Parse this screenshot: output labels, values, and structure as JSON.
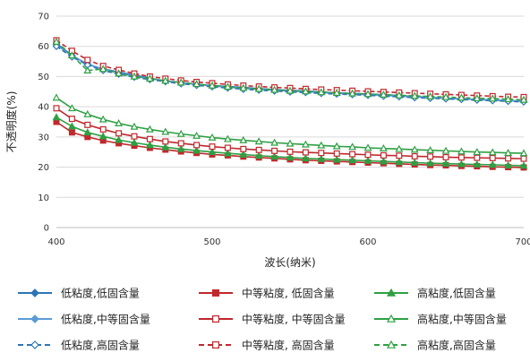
{
  "chart_data": {
    "type": "line",
    "xlabel": "波长(纳米)",
    "ylabel": "不透明度(%)",
    "xlim": [
      400,
      700
    ],
    "ylim": [
      0,
      70
    ],
    "xticks": [
      400,
      500,
      600,
      700
    ],
    "yticks": [
      0,
      10,
      20,
      30,
      40,
      50,
      60,
      70
    ],
    "grid": "horizontal",
    "legend_position": "bottom",
    "x": [
      400,
      410,
      420,
      430,
      440,
      450,
      460,
      470,
      480,
      490,
      500,
      510,
      520,
      530,
      540,
      550,
      560,
      570,
      580,
      590,
      600,
      610,
      620,
      630,
      640,
      650,
      660,
      670,
      680,
      690,
      700
    ],
    "series": [
      {
        "name": "低粘度,低固含量",
        "color": "#2E75B6",
        "dash": "solid",
        "marker": "diamond",
        "fill": "filled",
        "values": [
          61.0,
          57.0,
          54.0,
          52.5,
          51.5,
          50.5,
          49.5,
          48.5,
          48.0,
          47.5,
          47.0,
          46.7,
          46.4,
          46.0,
          45.7,
          45.4,
          45.2,
          44.9,
          44.6,
          44.4,
          44.2,
          44.0,
          43.7,
          43.4,
          43.1,
          42.8,
          42.6,
          42.4,
          42.2,
          42.0,
          41.8
        ]
      },
      {
        "name": "中等粘度, 低固含量",
        "color": "#C0282D",
        "dash": "solid",
        "marker": "square",
        "fill": "filled",
        "values": [
          35.0,
          31.5,
          30.0,
          28.8,
          27.9,
          27.1,
          26.4,
          25.8,
          25.2,
          24.7,
          24.2,
          23.9,
          23.5,
          23.2,
          22.9,
          22.6,
          22.3,
          22.1,
          21.9,
          21.7,
          21.5,
          21.3,
          21.1,
          20.9,
          20.7,
          20.6,
          20.4,
          20.3,
          20.1,
          20.0,
          19.9
        ]
      },
      {
        "name": "高粘度,低固含量",
        "color": "#2EA043",
        "dash": "solid",
        "marker": "triangle",
        "fill": "filled",
        "values": [
          36.5,
          33.5,
          31.5,
          30.2,
          29.0,
          28.1,
          27.3,
          26.6,
          26.0,
          25.5,
          25.0,
          24.6,
          24.2,
          23.8,
          23.5,
          23.2,
          22.9,
          22.7,
          22.5,
          22.3,
          22.1,
          21.9,
          21.7,
          21.5,
          21.3,
          21.2,
          21.0,
          20.9,
          20.8,
          20.6,
          20.5
        ]
      },
      {
        "name": "低粘度,中等固含量",
        "color": "#5B9BD5",
        "dash": "solid",
        "marker": "diamond",
        "fill": "filled",
        "values": [
          60.5,
          56.8,
          54.2,
          52.4,
          51.2,
          50.2,
          49.3,
          48.6,
          48.0,
          47.4,
          46.9,
          46.5,
          46.1,
          45.8,
          45.5,
          45.2,
          45.0,
          44.7,
          44.5,
          44.2,
          44.0,
          43.8,
          43.5,
          43.3,
          43.0,
          42.8,
          42.6,
          42.4,
          42.2,
          42.0,
          41.8
        ]
      },
      {
        "name": "中等粘度, 中等固含量",
        "color": "#C0282D",
        "dash": "solid",
        "marker": "square",
        "fill": "hollow",
        "values": [
          39.5,
          36.0,
          34.0,
          32.5,
          31.2,
          30.2,
          29.3,
          28.5,
          27.9,
          27.3,
          26.8,
          26.4,
          26.0,
          25.7,
          25.4,
          25.1,
          24.9,
          24.7,
          24.5,
          24.3,
          24.1,
          23.9,
          23.8,
          23.6,
          23.5,
          23.3,
          23.2,
          23.1,
          23.0,
          22.9,
          22.8
        ]
      },
      {
        "name": "高粘度,中等固含量",
        "color": "#2EA043",
        "dash": "solid",
        "marker": "triangle",
        "fill": "hollow",
        "values": [
          43.0,
          39.5,
          37.5,
          35.8,
          34.5,
          33.4,
          32.5,
          31.7,
          31.0,
          30.4,
          29.8,
          29.3,
          28.9,
          28.5,
          28.1,
          27.8,
          27.5,
          27.2,
          26.9,
          26.7,
          26.4,
          26.2,
          26.0,
          25.8,
          25.6,
          25.4,
          25.2,
          25.0,
          24.9,
          24.7,
          24.6
        ]
      },
      {
        "name": "低粘度,高固含量",
        "color": "#2E75B6",
        "dash": "dashed",
        "marker": "diamond",
        "fill": "hollow",
        "values": [
          60.0,
          56.5,
          53.8,
          52.0,
          50.8,
          49.8,
          49.0,
          48.3,
          47.6,
          47.1,
          46.6,
          46.2,
          45.8,
          45.5,
          45.2,
          44.9,
          44.7,
          44.4,
          44.2,
          44.0,
          43.8,
          43.5,
          43.3,
          43.0,
          42.8,
          42.6,
          42.4,
          42.2,
          42.0,
          41.8,
          41.6
        ]
      },
      {
        "name": "中等粘度, 高固含量",
        "color": "#C0282D",
        "dash": "dashed",
        "marker": "square",
        "fill": "hollow",
        "values": [
          62.0,
          58.5,
          55.5,
          53.5,
          52.2,
          51.0,
          50.0,
          49.3,
          48.7,
          48.2,
          47.8,
          47.4,
          47.0,
          46.7,
          46.4,
          46.2,
          45.9,
          45.7,
          45.5,
          45.3,
          45.1,
          44.9,
          44.7,
          44.5,
          44.3,
          44.1,
          43.9,
          43.7,
          43.5,
          43.3,
          43.2
        ]
      },
      {
        "name": "高粘度,高固含量",
        "color": "#2EA043",
        "dash": "dashed",
        "marker": "triangle",
        "fill": "hollow",
        "values": [
          61.5,
          57.0,
          52.0,
          52.5,
          51.0,
          50.0,
          49.3,
          48.6,
          48.0,
          47.5,
          47.0,
          46.6,
          46.2,
          45.9,
          45.6,
          45.3,
          45.1,
          44.8,
          44.6,
          44.4,
          44.2,
          44.0,
          43.8,
          43.6,
          43.4,
          43.2,
          43.0,
          42.8,
          42.7,
          42.5,
          42.3
        ]
      }
    ]
  }
}
